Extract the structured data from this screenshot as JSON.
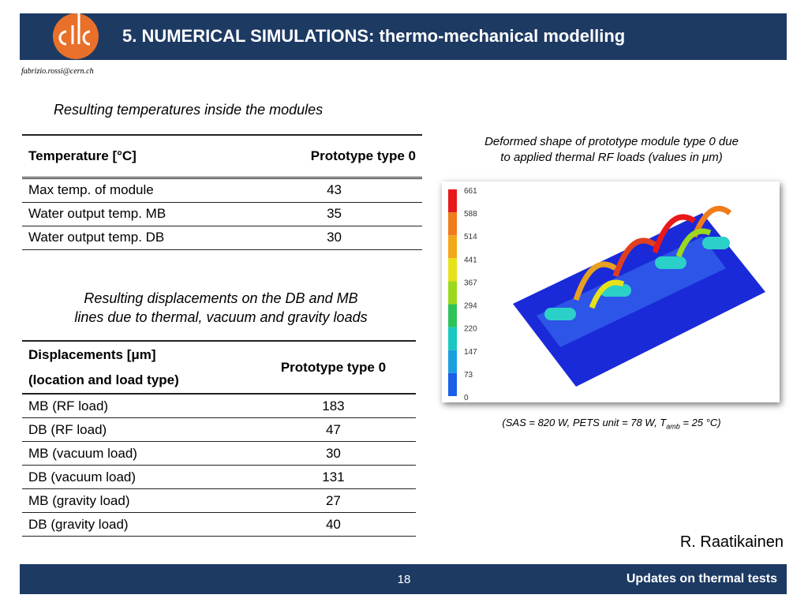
{
  "header": {
    "title": "5. NUMERICAL SIMULATIONS: thermo-mechanical modelling",
    "email": "fabrizio.rossi@cern.ch"
  },
  "temperature_table": {
    "caption": "Resulting temperatures inside the modules",
    "columns": [
      "Temperature [°C]",
      "Prototype type 0"
    ],
    "rows": [
      [
        "Max temp. of module",
        "43"
      ],
      [
        "Water output temp. MB",
        "35"
      ],
      [
        "Water output temp. DB",
        "30"
      ]
    ]
  },
  "displacement_table": {
    "caption": [
      "Resulting displacements on the DB and MB",
      "lines due to thermal, vacuum and gravity loads"
    ],
    "columns": [
      [
        "Displacements [μm]",
        "(location and load type)"
      ],
      "Prototype type 0"
    ],
    "rows": [
      [
        "MB (RF load)",
        "183"
      ],
      [
        "DB (RF load)",
        "47"
      ],
      [
        "MB (vacuum load)",
        "30"
      ],
      [
        "DB (vacuum load)",
        "131"
      ],
      [
        "MB (gravity load)",
        "27"
      ],
      [
        "DB (gravity load)",
        "40"
      ]
    ]
  },
  "figure": {
    "caption": [
      "Deformed shape of prototype module type 0 due",
      "to applied thermal RF loads (values in μm)"
    ],
    "legend": [
      661,
      588,
      514,
      441,
      367,
      294,
      220,
      147,
      73,
      0
    ],
    "note": {
      "before": "(SAS = 820 W, PETS unit = 78 W, T",
      "sub": "amb",
      "after": " = 25 °C)"
    }
  },
  "author": "R. Raatikainen",
  "footer": {
    "page": "18",
    "title": "Updates on thermal tests"
  }
}
